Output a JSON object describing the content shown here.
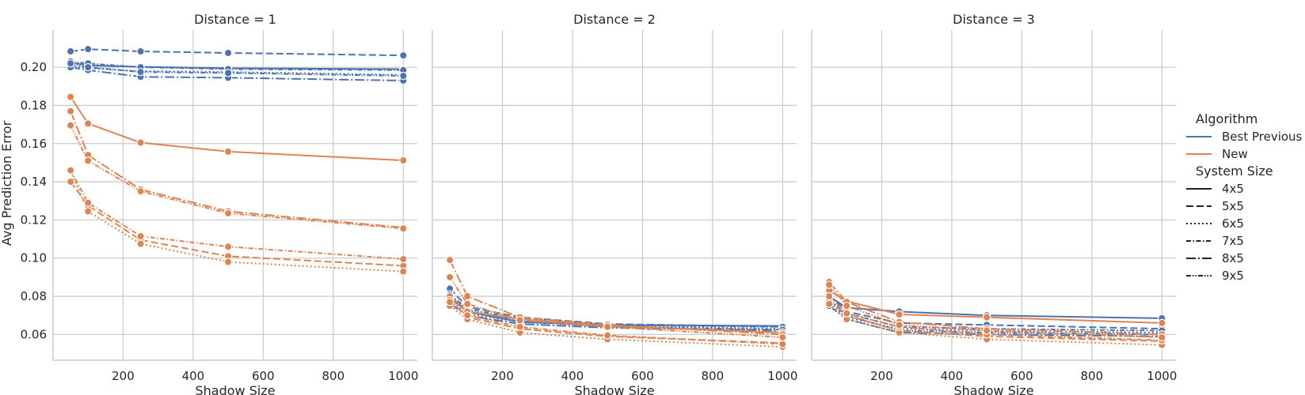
{
  "chart_data": {
    "type": "line",
    "ylabel": "Avg Prediction Error",
    "xlabel": "Shadow Size",
    "x": [
      50,
      100,
      250,
      500,
      1000
    ],
    "xticks": [
      200,
      400,
      600,
      800,
      1000
    ],
    "yticks": [
      0.06,
      0.08,
      0.1,
      0.12,
      0.14,
      0.16,
      0.18,
      0.2
    ],
    "ytick_labels": [
      "0.06",
      "0.08",
      "0.10",
      "0.12",
      "0.14",
      "0.16",
      "0.18",
      "0.20"
    ],
    "xlim": [
      0,
      1040
    ],
    "ylim": [
      0.0465,
      0.2195
    ],
    "grid": true,
    "legend_placement": "right",
    "colors": {
      "Best Previous": "#4c72b0",
      "New": "#dd8452"
    },
    "legend": {
      "hue_title": "Algorithm",
      "hue_entries": [
        "Best Previous",
        "New"
      ],
      "style_title": "System Size",
      "style_entries": [
        "4x5",
        "5x5",
        "6x5",
        "7x5",
        "8x5",
        "9x5"
      ]
    },
    "panels": [
      {
        "title": "Distance = 1",
        "series": [
          {
            "algorithm": "Best Previous",
            "system": "4x5",
            "values": [
              0.2025,
              0.201,
              0.2002,
              0.1995,
              0.199
            ]
          },
          {
            "algorithm": "Best Previous",
            "system": "5x5",
            "values": [
              0.2083,
              0.2095,
              0.2083,
              0.2075,
              0.2062
            ]
          },
          {
            "algorithm": "Best Previous",
            "system": "6x5",
            "values": [
              0.201,
              0.1995,
              0.198,
              0.1975,
              0.196
            ]
          },
          {
            "algorithm": "Best Previous",
            "system": "7x5",
            "values": [
              0.203,
              0.202,
              0.2,
              0.199,
              0.1985
            ]
          },
          {
            "algorithm": "Best Previous",
            "system": "8x5",
            "values": [
              0.2,
              0.1985,
              0.195,
              0.1945,
              0.193
            ]
          },
          {
            "algorithm": "Best Previous",
            "system": "9x5",
            "values": [
              0.202,
              0.2,
              0.1975,
              0.197,
              0.1955
            ]
          },
          {
            "algorithm": "New",
            "system": "4x5",
            "values": [
              0.1845,
              0.1705,
              0.1605,
              0.1558,
              0.1512
            ]
          },
          {
            "algorithm": "New",
            "system": "5x5",
            "values": [
              0.14,
              0.1275,
              0.1095,
              0.101,
              0.096
            ]
          },
          {
            "algorithm": "New",
            "system": "6x5",
            "values": [
              0.1455,
              0.1245,
              0.1075,
              0.098,
              0.093
            ]
          },
          {
            "algorithm": "New",
            "system": "7x5",
            "values": [
              0.146,
              0.129,
              0.1115,
              0.106,
              0.0995
            ]
          },
          {
            "algorithm": "New",
            "system": "8x5",
            "values": [
              0.177,
              0.154,
              0.136,
              0.1245,
              0.116
            ]
          },
          {
            "algorithm": "New",
            "system": "9x5",
            "values": [
              0.1695,
              0.151,
              0.135,
              0.1235,
              0.1155
            ]
          }
        ]
      },
      {
        "title": "Distance = 2",
        "series": [
          {
            "algorithm": "Best Previous",
            "system": "4x5",
            "values": [
              0.079,
              0.072,
              0.0665,
              0.065,
              0.0645
            ]
          },
          {
            "algorithm": "Best Previous",
            "system": "5x5",
            "values": [
              0.084,
              0.0745,
              0.069,
              0.0655,
              0.064
            ]
          },
          {
            "algorithm": "Best Previous",
            "system": "6x5",
            "values": [
              0.0775,
              0.071,
              0.0665,
              0.0645,
              0.063
            ]
          },
          {
            "algorithm": "Best Previous",
            "system": "7x5",
            "values": [
              0.081,
              0.0735,
              0.068,
              0.065,
              0.064
            ]
          },
          {
            "algorithm": "Best Previous",
            "system": "8x5",
            "values": [
              0.076,
              0.07,
              0.0655,
              0.0635,
              0.062
            ]
          },
          {
            "algorithm": "Best Previous",
            "system": "9x5",
            "values": [
              0.08,
              0.0725,
              0.067,
              0.064,
              0.0625
            ]
          },
          {
            "algorithm": "New",
            "system": "4x5",
            "values": [
              0.08,
              0.072,
              0.068,
              0.0645,
              0.061
            ]
          },
          {
            "algorithm": "New",
            "system": "5x5",
            "values": [
              0.078,
              0.069,
              0.063,
              0.059,
              0.0555
            ]
          },
          {
            "algorithm": "New",
            "system": "6x5",
            "values": [
              0.075,
              0.068,
              0.061,
              0.0575,
              0.0535
            ]
          },
          {
            "algorithm": "New",
            "system": "7x5",
            "values": [
              0.077,
              0.07,
              0.064,
              0.0595,
              0.055
            ]
          },
          {
            "algorithm": "New",
            "system": "8x5",
            "values": [
              0.099,
              0.08,
              0.069,
              0.065,
              0.06
            ]
          },
          {
            "algorithm": "New",
            "system": "9x5",
            "values": [
              0.09,
              0.076,
              0.0675,
              0.064,
              0.0585
            ]
          }
        ]
      },
      {
        "title": "Distance = 3",
        "series": [
          {
            "algorithm": "Best Previous",
            "system": "4x5",
            "values": [
              0.08,
              0.074,
              0.072,
              0.07,
              0.0685
            ]
          },
          {
            "algorithm": "Best Previous",
            "system": "5x5",
            "values": [
              0.0805,
              0.072,
              0.066,
              0.065,
              0.063
            ]
          },
          {
            "algorithm": "Best Previous",
            "system": "6x5",
            "values": [
              0.076,
              0.069,
              0.063,
              0.062,
              0.061
            ]
          },
          {
            "algorithm": "Best Previous",
            "system": "7x5",
            "values": [
              0.078,
              0.071,
              0.064,
              0.063,
              0.062
            ]
          },
          {
            "algorithm": "Best Previous",
            "system": "8x5",
            "values": [
              0.075,
              0.068,
              0.061,
              0.06,
              0.059
            ]
          },
          {
            "algorithm": "Best Previous",
            "system": "9x5",
            "values": [
              0.077,
              0.07,
              0.062,
              0.061,
              0.06
            ]
          },
          {
            "algorithm": "New",
            "system": "4x5",
            "values": [
              0.083,
              0.0775,
              0.0705,
              0.069,
              0.066
            ]
          },
          {
            "algorithm": "New",
            "system": "5x5",
            "values": [
              0.078,
              0.07,
              0.062,
              0.059,
              0.0565
            ]
          },
          {
            "algorithm": "New",
            "system": "6x5",
            "values": [
              0.076,
              0.068,
              0.061,
              0.0575,
              0.0545
            ]
          },
          {
            "algorithm": "New",
            "system": "7x5",
            "values": [
              0.08,
              0.071,
              0.064,
              0.06,
              0.057
            ]
          },
          {
            "algorithm": "New",
            "system": "8x5",
            "values": [
              0.0875,
              0.077,
              0.0665,
              0.063,
              0.06
            ]
          },
          {
            "algorithm": "New",
            "system": "9x5",
            "values": [
              0.086,
              0.075,
              0.065,
              0.062,
              0.0585
            ]
          }
        ]
      }
    ]
  }
}
